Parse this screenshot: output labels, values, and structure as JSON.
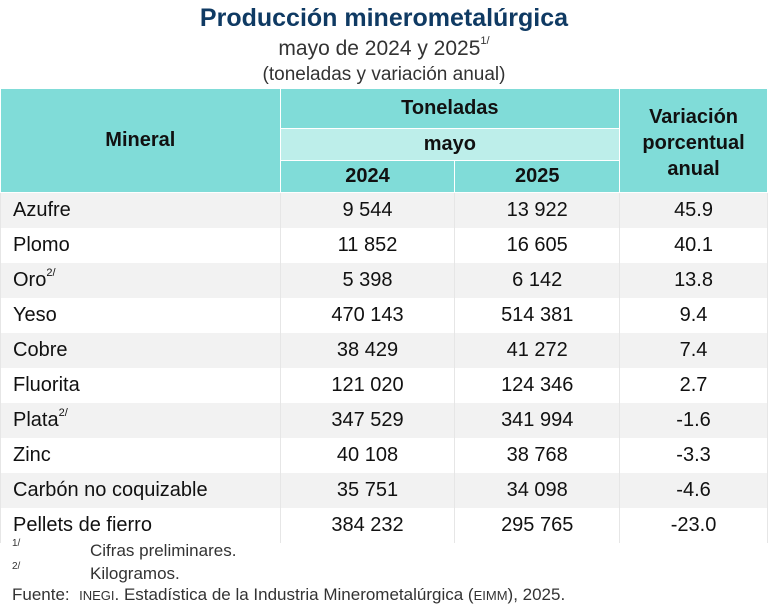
{
  "title": "Producción minerometalúrgica",
  "subtitle": "mayo de 2024 y 2025",
  "subtitle_note": "1/",
  "units": "(toneladas y variación anual)",
  "header": {
    "mineral": "Mineral",
    "toneladas": "Toneladas",
    "mayo": "mayo",
    "y2024": "2024",
    "y2025": "2025",
    "variacion": "Variación porcentual anual"
  },
  "rows": [
    {
      "mineral": "Azufre",
      "note": "",
      "v2024": "9 544",
      "v2025": "13 922",
      "var": "45.9"
    },
    {
      "mineral": "Plomo",
      "note": "",
      "v2024": "11 852",
      "v2025": "16 605",
      "var": "40.1"
    },
    {
      "mineral": "Oro",
      "note": "2/",
      "v2024": "5 398",
      "v2025": "6 142",
      "var": "13.8"
    },
    {
      "mineral": "Yeso",
      "note": "",
      "v2024": "470 143",
      "v2025": "514 381",
      "var": "9.4"
    },
    {
      "mineral": "Cobre",
      "note": "",
      "v2024": "38 429",
      "v2025": "41 272",
      "var": "7.4"
    },
    {
      "mineral": "Fluorita",
      "note": "",
      "v2024": "121 020",
      "v2025": "124 346",
      "var": "2.7"
    },
    {
      "mineral": "Plata",
      "note": "2/",
      "v2024": "347 529",
      "v2025": "341 994",
      "var": "-1.6"
    },
    {
      "mineral": "Zinc",
      "note": "",
      "v2024": "40 108",
      "v2025": "38 768",
      "var": "-3.3"
    },
    {
      "mineral": "Carbón no coquizable",
      "note": "",
      "v2024": "35 751",
      "v2025": "34 098",
      "var": "-4.6"
    },
    {
      "mineral": "Pellets de fierro",
      "note": "",
      "v2024": "384 232",
      "v2025": "295 765",
      "var": "-23.0"
    }
  ],
  "footnotes": [
    {
      "mark": "1/",
      "text": "Cifras preliminares."
    },
    {
      "mark": "2/",
      "text": "Kilogramos."
    }
  ],
  "source": {
    "label": "Fuente:",
    "org": "INEGI",
    "text": ". Estadística de la Industria Minerometalúrgica (",
    "abbr": "EIMM",
    "end": "), 2025."
  }
}
